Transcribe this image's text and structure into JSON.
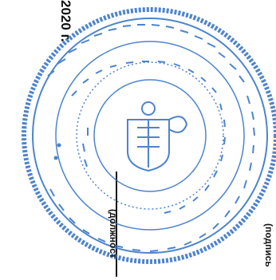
{
  "document": {
    "year_text": "2020 г.",
    "position_caption": "(должност",
    "signature_caption": "(подпись"
  },
  "seal": {
    "ink_color": "#2f6fc4",
    "emblem": "coat-of-arms-icon"
  },
  "line_color": "#111111"
}
